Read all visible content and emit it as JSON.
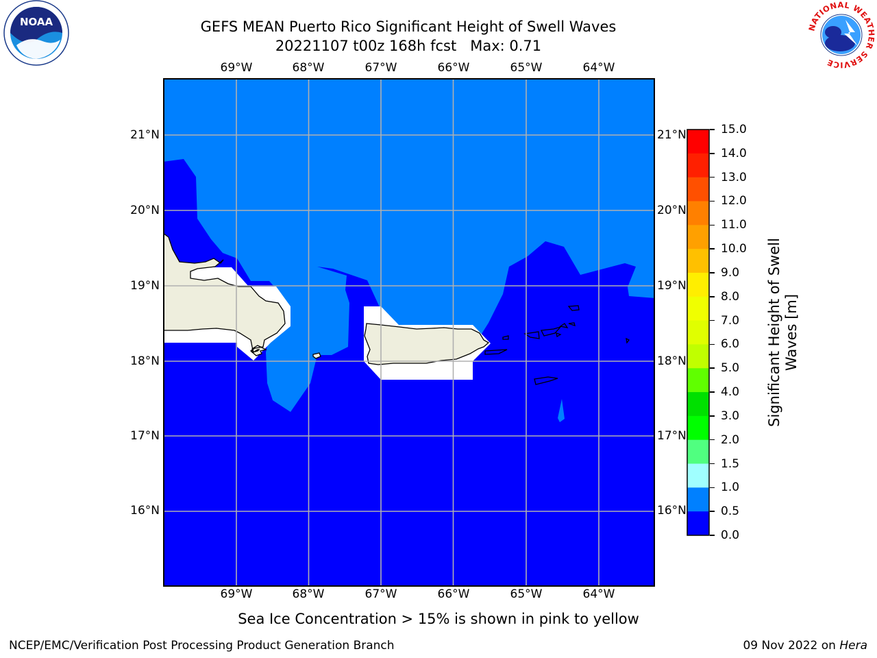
{
  "title": {
    "line1": "GEFS MEAN Puerto Rico Significant Height of Swell Waves",
    "line2": "20221107 t00z 168h fcst   Max: 0.71"
  },
  "map": {
    "lon_labels": [
      "69°W",
      "68°W",
      "67°W",
      "66°W",
      "65°W",
      "64°W"
    ],
    "lat_labels": [
      "21°N",
      "20°N",
      "19°N",
      "18°N",
      "17°N",
      "16°N"
    ],
    "ocean_color": "#0000ff",
    "swell_color": "#0080ff",
    "land_color": "#eeeedd",
    "mask_color": "#ffffff",
    "grid_color": "#b0b0b0"
  },
  "colorbar": {
    "label_line1": "Significant Height of Swell",
    "label_line2": "Waves [m]",
    "ticks": [
      "15.0",
      "14.0",
      "13.0",
      "12.0",
      "11.0",
      "10.0",
      "9.0",
      "8.0",
      "7.0",
      "6.0",
      "5.0",
      "4.0",
      "3.0",
      "2.0",
      "1.5",
      "1.0",
      "0.5",
      "0.0"
    ],
    "colors": [
      "#ff0000",
      "#ff2000",
      "#ff5000",
      "#ff8000",
      "#ffa000",
      "#ffc000",
      "#ffee00",
      "#f0ff00",
      "#e0ff00",
      "#c0ff00",
      "#60ff00",
      "#00e000",
      "#00ff00",
      "#50ff80",
      "#a0ffff",
      "#50ffff",
      "#00e0ff",
      "#0080ff",
      "#0000ff"
    ]
  },
  "note": "Sea Ice Concentration > 15% is shown in pink to yellow",
  "footer": {
    "left": "NCEP/EMC/Verification Post Processing Product Generation Branch",
    "right_text": "09 Nov 2022 on ",
    "right_italic": "Hera"
  },
  "logos": {
    "noaa_text": "NOAA",
    "nws_text": "NATIONAL WEATHER SERVICE"
  }
}
